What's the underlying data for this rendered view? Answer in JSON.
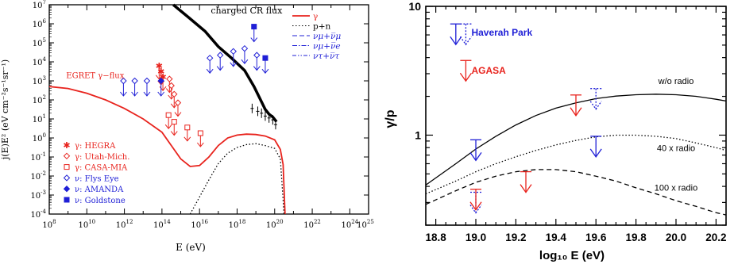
{
  "colors": {
    "black": "#000000",
    "red": "#e8231d",
    "blue": "#1f1fd6"
  },
  "chart_data": [
    {
      "type": "line",
      "title": "",
      "xlabel": "E (eV)",
      "ylabel": "j(E)E² (eV cm⁻²s⁻¹sr⁻¹)",
      "xscale": "log",
      "yscale": "log",
      "xlim": [
        100000000.0,
        1e+25
      ],
      "ylim": [
        0.0001,
        10000000.0
      ],
      "xtick_exps": [
        8,
        10,
        12,
        14,
        16,
        18,
        20,
        22,
        24,
        25
      ],
      "ytick_exps": [
        -4,
        -3,
        -2,
        -1,
        0,
        1,
        2,
        3,
        4,
        5,
        6,
        7
      ],
      "annotations": [
        {
          "text": "charged CR flux",
          "color": "black",
          "x_exp": 16.6,
          "y_exp": 6.55
        },
        {
          "text": "EGRET γ−flux",
          "color": "red",
          "x_exp": 8.9,
          "y_exp": 3.15
        }
      ],
      "legend_top": [
        {
          "label": "γ",
          "color": "red",
          "style": "solid"
        },
        {
          "label": "p+n",
          "color": "black",
          "style": "dotted"
        },
        {
          "label": "νμ+ν̅μ",
          "color": "blue",
          "style": "dashed"
        },
        {
          "label": "νμ+ν̅e",
          "color": "blue",
          "style": "dashdot"
        },
        {
          "label": "ντ+ν̅τ",
          "color": "blue",
          "style": "dashdotdot"
        }
      ],
      "legend_bottom": [
        {
          "label": "γ: HEGRA",
          "color": "red",
          "marker": "star"
        },
        {
          "label": "γ: Utah-Mich.",
          "color": "red",
          "marker": "diamond-open"
        },
        {
          "label": "γ: CASA-MIA",
          "color": "red",
          "marker": "square-open"
        },
        {
          "label": "ν: Flys Eye",
          "color": "blue",
          "marker": "diamond-open"
        },
        {
          "label": "ν: AMANDA",
          "color": "blue",
          "marker": "diamond-filled"
        },
        {
          "label": "ν: Goldstone",
          "color": "blue",
          "marker": "square-filled"
        }
      ],
      "series": [
        {
          "name": "charged CR flux",
          "color": "black",
          "style": "thick",
          "points": [
            [
              14.6,
              7
            ],
            [
              15.4,
              6.35
            ],
            [
              16.3,
              5.6
            ],
            [
              17,
              4.8
            ],
            [
              17.7,
              4.2
            ],
            [
              18.4,
              3.55
            ],
            [
              18.9,
              2.7
            ],
            [
              19.3,
              1.9
            ],
            [
              19.5,
              1.5
            ],
            [
              19.7,
              1.25
            ],
            [
              19.9,
              1.1
            ],
            [
              20.1,
              0.85
            ]
          ]
        },
        {
          "name": "γ",
          "color": "red",
          "style": "solid",
          "points": [
            [
              8,
              2.7
            ],
            [
              9,
              2.6
            ],
            [
              10,
              2.35
            ],
            [
              11,
              2.0
            ],
            [
              12,
              1.55
            ],
            [
              13,
              1.0
            ],
            [
              14,
              0.3
            ],
            [
              14.5,
              -0.4
            ],
            [
              15,
              -1.1
            ],
            [
              15.5,
              -1.5
            ],
            [
              16,
              -1.45
            ],
            [
              16.5,
              -1.0
            ],
            [
              17,
              -0.4
            ],
            [
              17.5,
              0
            ],
            [
              18,
              0.15
            ],
            [
              18.5,
              0.2
            ],
            [
              19,
              0.18
            ],
            [
              19.5,
              0.1
            ],
            [
              20,
              -0.1
            ],
            [
              20.3,
              -0.6
            ],
            [
              20.45,
              -1.4
            ],
            [
              20.55,
              -4
            ]
          ]
        },
        {
          "name": "p+n",
          "color": "black",
          "style": "dotted",
          "points": [
            [
              15.5,
              -4
            ],
            [
              16,
              -3.1
            ],
            [
              16.5,
              -2.2
            ],
            [
              17,
              -1.35
            ],
            [
              17.5,
              -0.8
            ],
            [
              18,
              -0.5
            ],
            [
              18.5,
              -0.35
            ],
            [
              19,
              -0.3
            ],
            [
              19.5,
              -0.4
            ],
            [
              20,
              -0.55
            ],
            [
              20.3,
              -1.1
            ],
            [
              20.5,
              -4
            ]
          ]
        }
      ],
      "upper_limits_gamma": [
        {
          "x_exp": 13.85,
          "y_exp": 3.8,
          "marker": "star"
        },
        {
          "x_exp": 13.95,
          "y_exp": 3.5,
          "marker": "star"
        },
        {
          "x_exp": 14.05,
          "y_exp": 3.2,
          "marker": "star"
        },
        {
          "x_exp": 14.4,
          "y_exp": 3.1,
          "marker": "diamond-open"
        },
        {
          "x_exp": 14.5,
          "y_exp": 2.75,
          "marker": "diamond-open"
        },
        {
          "x_exp": 14.65,
          "y_exp": 2.3,
          "marker": "diamond-open"
        },
        {
          "x_exp": 14.85,
          "y_exp": 1.85,
          "marker": "diamond-open"
        },
        {
          "x_exp": 14.35,
          "y_exp": 1.2,
          "marker": "square-open"
        },
        {
          "x_exp": 14.65,
          "y_exp": 0.85,
          "marker": "square-open"
        },
        {
          "x_exp": 15.35,
          "y_exp": 0.55,
          "marker": "square-open"
        },
        {
          "x_exp": 16.05,
          "y_exp": 0.25,
          "marker": "square-open"
        }
      ],
      "upper_limits_nu": [
        {
          "x_exp": 11.95,
          "y_exp": 3,
          "marker": "diamond-open"
        },
        {
          "x_exp": 12.55,
          "y_exp": 3,
          "marker": "diamond-open"
        },
        {
          "x_exp": 13.2,
          "y_exp": 3,
          "marker": "diamond-open"
        },
        {
          "x_exp": 13.95,
          "y_exp": 3,
          "marker": "diamond-filled"
        },
        {
          "x_exp": 16.55,
          "y_exp": 4.2,
          "marker": "diamond-open"
        },
        {
          "x_exp": 17.1,
          "y_exp": 4.35,
          "marker": "diamond-open"
        },
        {
          "x_exp": 17.8,
          "y_exp": 4.55,
          "marker": "diamond-open"
        },
        {
          "x_exp": 18.4,
          "y_exp": 4.7,
          "marker": "diamond-open"
        },
        {
          "x_exp": 19.05,
          "y_exp": 4.35,
          "marker": "diamond-open"
        },
        {
          "x_exp": 18.9,
          "y_exp": 5.85,
          "marker": "square-filled"
        },
        {
          "x_exp": 19.5,
          "y_exp": 4.2,
          "marker": "square-filled"
        }
      ],
      "data_points_cr": [
        [
          18.8,
          1.55
        ],
        [
          19.1,
          1.4
        ],
        [
          19.3,
          1.3
        ],
        [
          19.5,
          1.15
        ],
        [
          19.7,
          1.05
        ],
        [
          19.9,
          0.95
        ],
        [
          20.05,
          0.7
        ]
      ]
    },
    {
      "type": "line",
      "title": "",
      "xlabel": "log₁₀ E (eV)",
      "ylabel": "γ/p",
      "xlim": [
        18.75,
        20.25
      ],
      "ylim": [
        0.2,
        10
      ],
      "yscale": "log",
      "xticks": [
        "18.8",
        "19.0",
        "19.2",
        "19.4",
        "19.6",
        "19.8",
        "20.0",
        "20.2"
      ],
      "xtick_values": [
        18.8,
        19.0,
        19.2,
        19.4,
        19.6,
        19.8,
        20.0,
        20.2
      ],
      "yticks": [
        "1",
        "10"
      ],
      "ytick_values": [
        1,
        10
      ],
      "series": [
        {
          "name": "w/o radio",
          "color": "black",
          "style": "solid",
          "x": [
            18.75,
            18.9,
            19.0,
            19.1,
            19.2,
            19.3,
            19.4,
            19.5,
            19.6,
            19.7,
            19.8,
            19.9,
            20.0,
            20.1,
            20.2,
            20.25
          ],
          "y": [
            0.41,
            0.6,
            0.78,
            0.98,
            1.2,
            1.42,
            1.62,
            1.78,
            1.92,
            2.01,
            2.06,
            2.08,
            2.06,
            2.0,
            1.9,
            1.84
          ]
        },
        {
          "name": "40 x radio",
          "color": "black",
          "style": "dotted",
          "x": [
            18.75,
            18.9,
            19.0,
            19.1,
            19.2,
            19.3,
            19.4,
            19.5,
            19.6,
            19.7,
            19.8,
            19.9,
            20.0,
            20.1,
            20.2,
            20.25
          ],
          "y": [
            0.35,
            0.44,
            0.52,
            0.6,
            0.68,
            0.76,
            0.84,
            0.91,
            0.97,
            1.0,
            1.0,
            0.98,
            0.94,
            0.87,
            0.8,
            0.76
          ]
        },
        {
          "name": "100 x radio",
          "color": "black",
          "style": "dashed",
          "x": [
            18.75,
            18.9,
            19.0,
            19.1,
            19.2,
            19.3,
            19.4,
            19.5,
            19.6,
            19.7,
            19.8,
            19.9,
            20.0,
            20.1,
            20.2,
            20.25
          ],
          "y": [
            0.29,
            0.37,
            0.43,
            0.48,
            0.52,
            0.54,
            0.54,
            0.52,
            0.48,
            0.44,
            0.39,
            0.35,
            0.31,
            0.28,
            0.25,
            0.24
          ]
        }
      ],
      "curve_labels": [
        {
          "text": "w/o radio",
          "x": 20.0,
          "y": 2.5
        },
        {
          "text": "40 x radio",
          "x": 20.0,
          "y": 0.75
        },
        {
          "text": "100 x radio",
          "x": 20.0,
          "y": 0.37
        }
      ],
      "upper_limits": [
        {
          "set": "Haverah Park",
          "x": 18.9,
          "y": 7.3,
          "style": "solid"
        },
        {
          "set": "Haverah Park",
          "x": 19.0,
          "y": 0.92,
          "style": "solid"
        },
        {
          "set": "Haverah Park",
          "x": 19.6,
          "y": 0.98,
          "style": "solid"
        },
        {
          "set": "Haverah Park",
          "x": 18.95,
          "y": 7.3,
          "style": "dotted"
        },
        {
          "set": "Haverah Park",
          "x": 19.6,
          "y": 2.3,
          "style": "dotted"
        },
        {
          "set": "Haverah Park",
          "x": 19.0,
          "y": 0.36,
          "style": "dotted"
        },
        {
          "set": "AGASA",
          "x": 18.95,
          "y": 3.8,
          "style": "solid"
        },
        {
          "set": "AGASA",
          "x": 19.0,
          "y": 0.38,
          "style": "solid"
        },
        {
          "set": "AGASA",
          "x": 19.25,
          "y": 0.52,
          "style": "solid"
        },
        {
          "set": "AGASA",
          "x": 19.5,
          "y": 2.05,
          "style": "solid"
        }
      ],
      "legend": [
        {
          "label": "Haverah Park",
          "color": "blue"
        },
        {
          "label": "AGASA",
          "color": "red"
        }
      ]
    }
  ]
}
